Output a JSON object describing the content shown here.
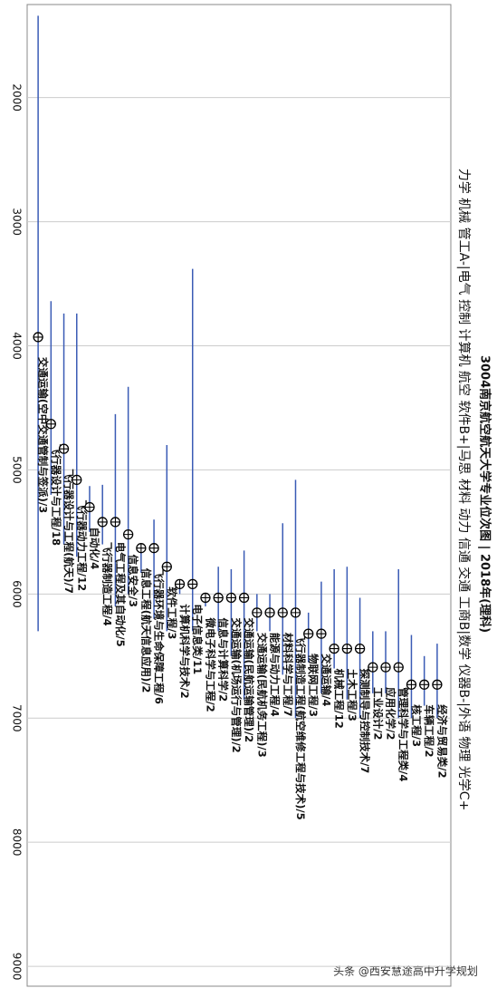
{
  "chart_data": {
    "type": "rangedot",
    "title": "3004南京航空航天大学专业位次图 | 2018年(理科)",
    "subtitle": "力学 机械 管工A-|电气 控制 计算机 航空 软件B+|马思 材料 动力 信通 交通 工商B|数学 仪器B-|外语 物理 光学C+",
    "watermark": "头条 @西安慧途高中升学规划",
    "categories": [
      "交通运输(空中交通管制与签派)/3",
      "飞行器设计与工程/18",
      "飞行器设计与工程(航天)/7",
      "飞行器动力工程/12",
      "自动化/4",
      "飞行器制造工程/4",
      "电气工程及其自动化/5",
      "信息安全/3",
      "信息工程(航天信息应用)/2",
      "飞行器环境与生命保障工程/6",
      "软件工程/3",
      "计算机科学与技术/2",
      "电子信息类/11",
      "微电子科学与工程/2",
      "信息与计算科学/2",
      "交通运输(机场运行与管理)/2",
      "交通运输(民航运输管理)/2",
      "交通运输(民航机务工程)/3",
      "能源与动力工程/4",
      "材料科学与工程/7",
      "飞行器制造工程(航空维修工程与技术)/5",
      "物联网工程/3",
      "交通运输/4",
      "机械工程/12",
      "土木工程/3",
      "探测制导与控制技术/7",
      "工业设计/2",
      "应用化学/2",
      "管理科学与工程类/4",
      "核工程/3",
      "车辆工程/2",
      "经济与贸易类/2"
    ],
    "values": [
      3930,
      4630,
      4830,
      5080,
      5300,
      5420,
      5420,
      5520,
      5630,
      5630,
      5780,
      5920,
      5920,
      6030,
      6030,
      6030,
      6030,
      6150,
      6150,
      6150,
      6150,
      6320,
      6320,
      6440,
      6440,
      6440,
      6590,
      6590,
      6590,
      6730,
      6730,
      6730
    ],
    "low": [
      1340,
      3640,
      3740,
      3740,
      5130,
      5120,
      4550,
      4330,
      5600,
      5400,
      4800,
      5900,
      3380,
      6000,
      5780,
      5800,
      5650,
      6000,
      6000,
      5430,
      5080,
      6150,
      5900,
      5800,
      5780,
      6030,
      6300,
      6300,
      5800,
      6330,
      6500,
      6400
    ],
    "high": [
      6300,
      5200,
      5600,
      5700,
      5500,
      5600,
      6100,
      6000,
      5830,
      6200,
      6300,
      6000,
      6300,
      6100,
      6300,
      6500,
      6850,
      6300,
      6300,
      6650,
      7000,
      6550,
      6800,
      6600,
      6850,
      7000,
      6800,
      6800,
      7000,
      7000,
      6900,
      7000
    ],
    "color": "#3a5bb5",
    "ylim": [
      1250,
      9160
    ],
    "yticks": [
      2000,
      3000,
      4000,
      5000,
      6000,
      7000,
      8000,
      9000
    ],
    "grid": true
  }
}
